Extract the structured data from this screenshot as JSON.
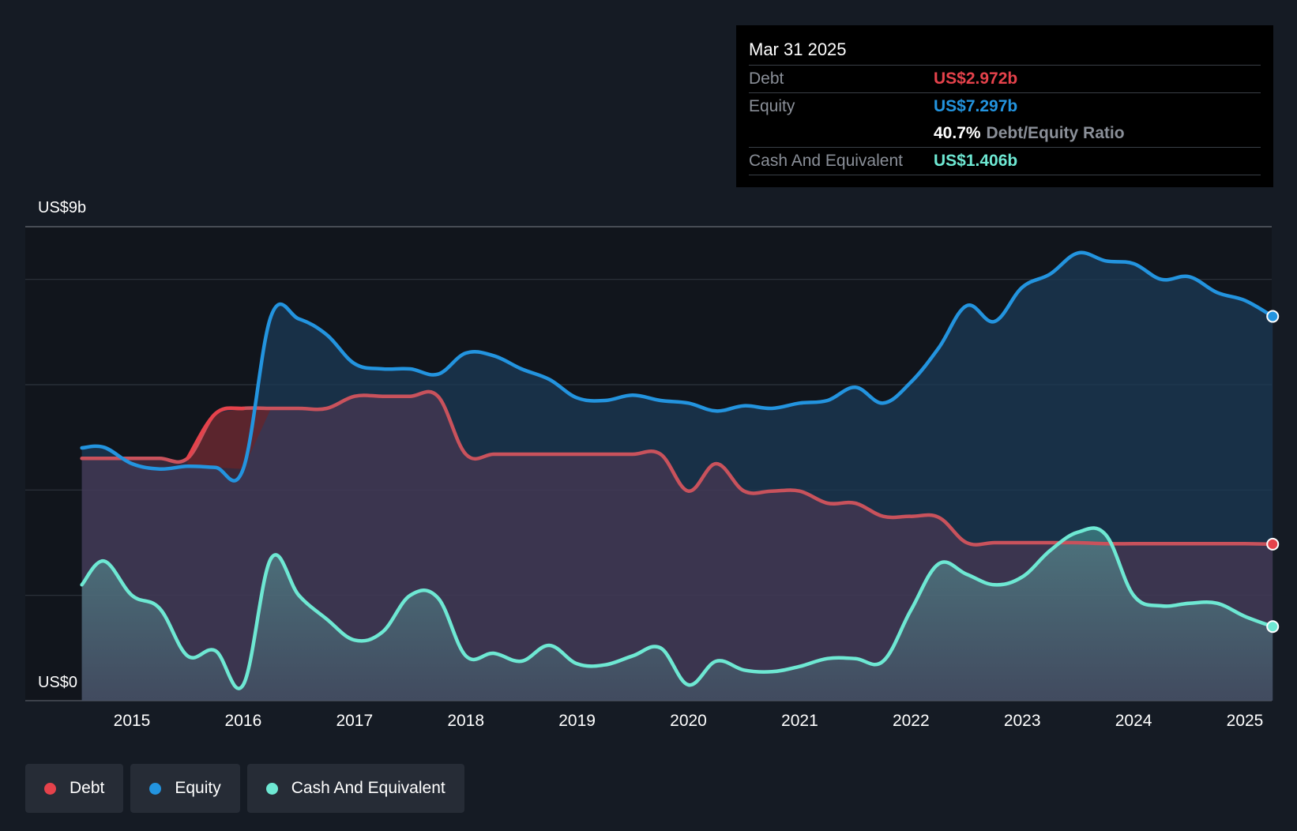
{
  "tooltip": {
    "date": "Mar 31 2025",
    "rows": [
      {
        "label": "Debt",
        "value": "US$2.972b"
      },
      {
        "label": "Equity",
        "value": "US$7.297b"
      },
      {
        "label": "",
        "value": "40.7%",
        "suffix": "Debt/Equity Ratio"
      },
      {
        "label": "Cash And Equivalent",
        "value": "US$1.406b"
      }
    ]
  },
  "legend": [
    {
      "label": "Debt",
      "color": "#e5424b"
    },
    {
      "label": "Equity",
      "color": "#2394df"
    },
    {
      "label": "Cash And Equivalent",
      "color": "#6ee8d3"
    }
  ],
  "chart_data": {
    "type": "area",
    "y_top_label": "US$9b",
    "y_bottom_label": "US$0",
    "ylim": [
      0,
      9
    ],
    "xlim": [
      2014.1,
      2025.25
    ],
    "x_ticks": [
      "2015",
      "2016",
      "2017",
      "2018",
      "2019",
      "2020",
      "2021",
      "2022",
      "2023",
      "2024",
      "2025"
    ],
    "gridlines": [
      0,
      2,
      4,
      6,
      8,
      9
    ],
    "highlight_x": 2025.25,
    "series": [
      {
        "name": "Equity",
        "color": "#2394df",
        "points": [
          [
            2014.55,
            4.8
          ],
          [
            2014.75,
            4.81
          ],
          [
            2015.0,
            4.5
          ],
          [
            2015.25,
            4.4
          ],
          [
            2015.5,
            4.45
          ],
          [
            2015.75,
            4.43
          ],
          [
            2016.0,
            4.4
          ],
          [
            2016.25,
            7.3
          ],
          [
            2016.5,
            7.25
          ],
          [
            2016.75,
            6.95
          ],
          [
            2017.0,
            6.4
          ],
          [
            2017.25,
            6.3
          ],
          [
            2017.5,
            6.3
          ],
          [
            2017.75,
            6.2
          ],
          [
            2018.0,
            6.6
          ],
          [
            2018.25,
            6.55
          ],
          [
            2018.5,
            6.3
          ],
          [
            2018.75,
            6.1
          ],
          [
            2019.0,
            5.75
          ],
          [
            2019.25,
            5.7
          ],
          [
            2019.5,
            5.8
          ],
          [
            2019.75,
            5.7
          ],
          [
            2020.0,
            5.65
          ],
          [
            2020.25,
            5.5
          ],
          [
            2020.5,
            5.6
          ],
          [
            2020.75,
            5.55
          ],
          [
            2021.0,
            5.65
          ],
          [
            2021.25,
            5.7
          ],
          [
            2021.5,
            5.95
          ],
          [
            2021.75,
            5.65
          ],
          [
            2022.0,
            6.05
          ],
          [
            2022.25,
            6.7
          ],
          [
            2022.5,
            7.5
          ],
          [
            2022.75,
            7.2
          ],
          [
            2023.0,
            7.85
          ],
          [
            2023.25,
            8.1
          ],
          [
            2023.5,
            8.5
          ],
          [
            2023.75,
            8.35
          ],
          [
            2024.0,
            8.3
          ],
          [
            2024.25,
            8.0
          ],
          [
            2024.5,
            8.05
          ],
          [
            2024.75,
            7.75
          ],
          [
            2025.0,
            7.6
          ],
          [
            2025.25,
            7.297
          ]
        ]
      },
      {
        "name": "Debt",
        "color": "#e5424b",
        "points": [
          [
            2014.55,
            4.6
          ],
          [
            2014.75,
            4.6
          ],
          [
            2015.0,
            4.6
          ],
          [
            2015.25,
            4.6
          ],
          [
            2015.5,
            4.6
          ],
          [
            2015.75,
            5.45
          ],
          [
            2016.0,
            5.55
          ],
          [
            2016.25,
            5.55
          ],
          [
            2016.5,
            5.55
          ],
          [
            2016.75,
            5.55
          ],
          [
            2017.0,
            5.78
          ],
          [
            2017.25,
            5.78
          ],
          [
            2017.5,
            5.78
          ],
          [
            2017.75,
            5.78
          ],
          [
            2018.0,
            4.68
          ],
          [
            2018.25,
            4.68
          ],
          [
            2018.5,
            4.68
          ],
          [
            2018.75,
            4.68
          ],
          [
            2019.0,
            4.68
          ],
          [
            2019.25,
            4.68
          ],
          [
            2019.5,
            4.68
          ],
          [
            2019.75,
            4.68
          ],
          [
            2020.0,
            3.98
          ],
          [
            2020.25,
            4.5
          ],
          [
            2020.5,
            3.98
          ],
          [
            2020.75,
            3.98
          ],
          [
            2021.0,
            3.98
          ],
          [
            2021.25,
            3.75
          ],
          [
            2021.5,
            3.75
          ],
          [
            2021.75,
            3.5
          ],
          [
            2022.0,
            3.5
          ],
          [
            2022.25,
            3.48
          ],
          [
            2022.5,
            3.0
          ],
          [
            2022.75,
            3.0
          ],
          [
            2023.0,
            3.0
          ],
          [
            2023.25,
            3.0
          ],
          [
            2023.5,
            3.0
          ],
          [
            2023.75,
            2.98
          ],
          [
            2024.0,
            2.98
          ],
          [
            2024.25,
            2.98
          ],
          [
            2024.5,
            2.98
          ],
          [
            2024.75,
            2.98
          ],
          [
            2025.0,
            2.98
          ],
          [
            2025.25,
            2.972
          ]
        ]
      },
      {
        "name": "Cash And Equivalent",
        "color": "#6ee8d3",
        "points": [
          [
            2014.55,
            2.2
          ],
          [
            2014.75,
            2.65
          ],
          [
            2015.0,
            2.0
          ],
          [
            2015.25,
            1.75
          ],
          [
            2015.5,
            0.85
          ],
          [
            2015.75,
            0.95
          ],
          [
            2016.0,
            0.3
          ],
          [
            2016.25,
            2.7
          ],
          [
            2016.5,
            2.0
          ],
          [
            2016.75,
            1.55
          ],
          [
            2017.0,
            1.15
          ],
          [
            2017.25,
            1.3
          ],
          [
            2017.5,
            2.0
          ],
          [
            2017.75,
            1.95
          ],
          [
            2018.0,
            0.85
          ],
          [
            2018.25,
            0.9
          ],
          [
            2018.5,
            0.75
          ],
          [
            2018.75,
            1.05
          ],
          [
            2019.0,
            0.7
          ],
          [
            2019.25,
            0.68
          ],
          [
            2019.5,
            0.85
          ],
          [
            2019.75,
            1.0
          ],
          [
            2020.0,
            0.3
          ],
          [
            2020.25,
            0.75
          ],
          [
            2020.5,
            0.58
          ],
          [
            2020.75,
            0.55
          ],
          [
            2021.0,
            0.65
          ],
          [
            2021.25,
            0.8
          ],
          [
            2021.5,
            0.8
          ],
          [
            2021.75,
            0.75
          ],
          [
            2022.0,
            1.72
          ],
          [
            2022.25,
            2.6
          ],
          [
            2022.5,
            2.4
          ],
          [
            2022.75,
            2.2
          ],
          [
            2023.0,
            2.35
          ],
          [
            2023.25,
            2.85
          ],
          [
            2023.5,
            3.2
          ],
          [
            2023.75,
            3.15
          ],
          [
            2024.0,
            2.0
          ],
          [
            2024.25,
            1.8
          ],
          [
            2024.5,
            1.85
          ],
          [
            2024.75,
            1.85
          ],
          [
            2025.0,
            1.6
          ],
          [
            2025.25,
            1.406
          ]
        ]
      }
    ]
  }
}
